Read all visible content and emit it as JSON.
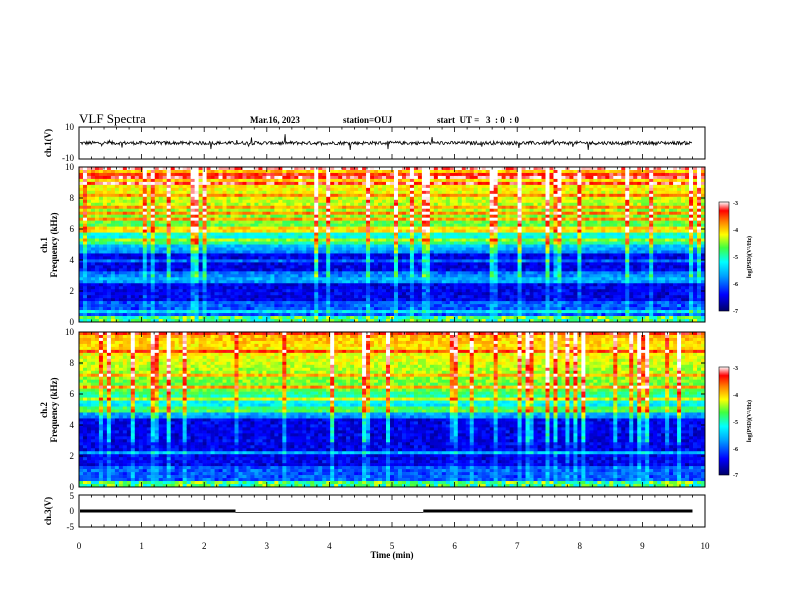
{
  "header": {
    "title": "VLF Spectra",
    "date": "Mar.16, 2023",
    "station": "station=OUJ",
    "start_ut": "start  UT =   3  : 0  : 0"
  },
  "colors": {
    "waveform": "#000000",
    "colormap": [
      "#000066",
      "#0000ff",
      "#00a0ff",
      "#00ffff",
      "#40ff40",
      "#ffff00",
      "#ff8000",
      "#ff0000",
      "#ffffff"
    ]
  },
  "chart_data": [
    {
      "type": "line",
      "name": "ch.1 waveform",
      "ylabel": "ch.1(V)",
      "yticks": [
        "10",
        "-10"
      ],
      "ylim": [
        -10,
        10
      ],
      "baseline": 0,
      "xlim": [
        0,
        10
      ],
      "series_end_min": 9.8
    },
    {
      "type": "heatmap",
      "name": "ch.1 spectrogram",
      "ylabel_channel": "ch.1",
      "ylabel": "Frequency (kHz)",
      "yticks": [
        "0",
        "2",
        "4",
        "6",
        "8",
        "10"
      ],
      "ylim": [
        0,
        10
      ],
      "xlim": [
        0,
        10
      ],
      "colorbar": {
        "label": "log(PSD)(V²/Hz)",
        "ticks": [
          "-3",
          "-4",
          "-5",
          "-6",
          "-7"
        ],
        "range": [
          -7,
          -3
        ]
      }
    },
    {
      "type": "heatmap",
      "name": "ch.2 spectrogram",
      "ylabel_channel": "ch.2",
      "ylabel": "Frequency (kHz)",
      "yticks": [
        "0",
        "2",
        "4",
        "6",
        "8",
        "10"
      ],
      "ylim": [
        0,
        10
      ],
      "xlim": [
        0,
        10
      ],
      "colorbar": {
        "label": "log(PSD)(V²/Hz)",
        "ticks": [
          "-3",
          "-4",
          "-5",
          "-6",
          "-7"
        ],
        "range": [
          -7,
          -3
        ]
      }
    },
    {
      "type": "line",
      "name": "ch.3 signal",
      "ylabel": "ch.3(V)",
      "yticks": [
        "5",
        "0",
        "-5"
      ],
      "ylim": [
        -5,
        5
      ],
      "level": 0,
      "xlim": [
        0,
        10
      ],
      "series_end_min": 9.8,
      "dips_min": [
        [
          2.5,
          5.5
        ]
      ]
    }
  ],
  "xaxis": {
    "label": "Time (min)",
    "ticks": [
      "0",
      "1",
      "2",
      "3",
      "4",
      "5",
      "6",
      "7",
      "8",
      "9",
      "10"
    ],
    "range": [
      0,
      10
    ]
  }
}
